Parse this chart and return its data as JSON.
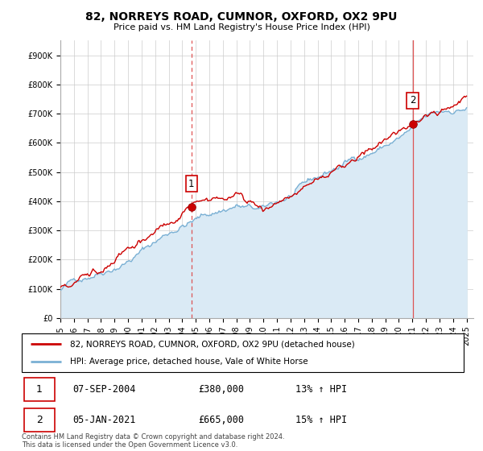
{
  "title": "82, NORREYS ROAD, CUMNOR, OXFORD, OX2 9PU",
  "subtitle": "Price paid vs. HM Land Registry's House Price Index (HPI)",
  "yticks": [
    0,
    100000,
    200000,
    300000,
    400000,
    500000,
    600000,
    700000,
    800000,
    900000
  ],
  "ytick_labels": [
    "£0",
    "£100K",
    "£200K",
    "£300K",
    "£400K",
    "£500K",
    "£600K",
    "£700K",
    "£800K",
    "£900K"
  ],
  "ylim": [
    0,
    950000
  ],
  "xlim_start": 1995.0,
  "xlim_end": 2025.5,
  "xticks": [
    1995,
    1996,
    1997,
    1998,
    1999,
    2000,
    2001,
    2002,
    2003,
    2004,
    2005,
    2006,
    2007,
    2008,
    2009,
    2010,
    2011,
    2012,
    2013,
    2014,
    2015,
    2016,
    2017,
    2018,
    2019,
    2020,
    2021,
    2022,
    2023,
    2024,
    2025
  ],
  "sale1_x": 2004.68,
  "sale1_y": 380000,
  "sale1_label": "1",
  "sale1_date": "07-SEP-2004",
  "sale1_price": "£380,000",
  "sale1_hpi": "13% ↑ HPI",
  "sale2_x": 2021.02,
  "sale2_y": 665000,
  "sale2_label": "2",
  "sale2_date": "05-JAN-2021",
  "sale2_price": "£665,000",
  "sale2_hpi": "15% ↑ HPI",
  "legend_line1": "82, NORREYS ROAD, CUMNOR, OXFORD, OX2 9PU (detached house)",
  "legend_line2": "HPI: Average price, detached house, Vale of White Horse",
  "footer": "Contains HM Land Registry data © Crown copyright and database right 2024.\nThis data is licensed under the Open Government Licence v3.0.",
  "line_color_red": "#cc0000",
  "line_color_blue": "#7ab0d4",
  "fill_color_blue": "#daeaf5",
  "vline_color": "#dd4444",
  "background_color": "#ffffff",
  "grid_color": "#cccccc"
}
